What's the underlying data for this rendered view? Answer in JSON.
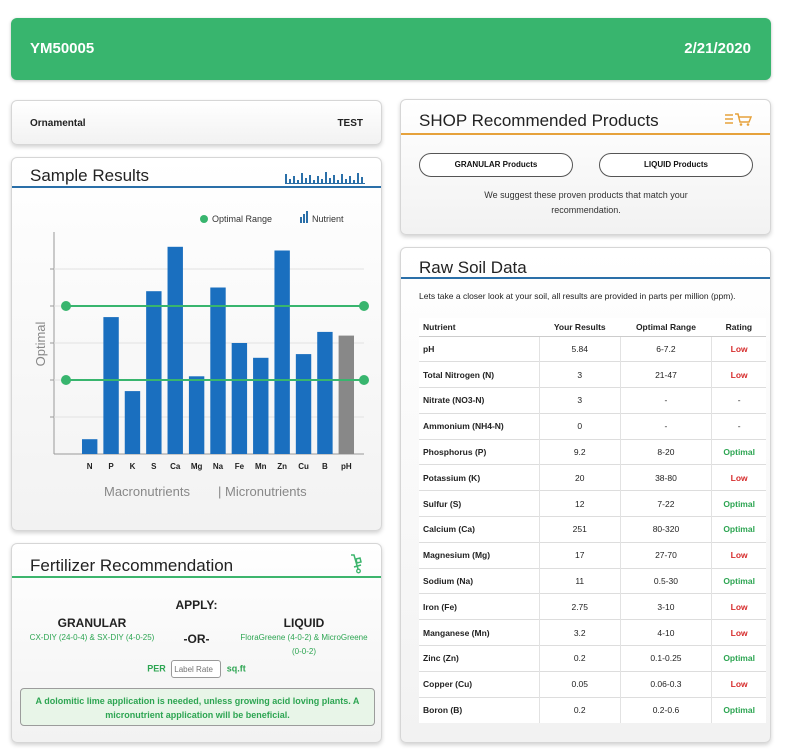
{
  "header": {
    "sample_id": "YM50005",
    "date": "2/21/2020"
  },
  "plant": {
    "name": "Ornamental",
    "tag": "TEST"
  },
  "sample_results": {
    "title": "Sample Results",
    "icon": "bar-chart-icon",
    "legend_optimal": "Optimal Range",
    "legend_nutrient": "Nutrient",
    "footer_macro": "Macronutrients",
    "footer_micro": "| Micronutrients"
  },
  "chart_data": {
    "type": "bar",
    "categories": [
      "N",
      "P",
      "K",
      "S",
      "Ca",
      "Mg",
      "Na",
      "Fe",
      "Mn",
      "Zn",
      "Cu",
      "B",
      "pH"
    ],
    "values": [
      0.4,
      3.7,
      1.7,
      4.4,
      5.6,
      2.1,
      4.5,
      3.0,
      2.6,
      5.5,
      2.7,
      3.3,
      3.2
    ],
    "bar_colors": [
      "#1a6fbf",
      "#1a6fbf",
      "#1a6fbf",
      "#1a6fbf",
      "#1a6fbf",
      "#1a6fbf",
      "#1a6fbf",
      "#1a6fbf",
      "#1a6fbf",
      "#1a6fbf",
      "#1a6fbf",
      "#1a6fbf",
      "#888888"
    ],
    "optimal_range": [
      2.0,
      4.0
    ],
    "ylim": [
      0,
      6
    ],
    "ylabel": "Optimal",
    "grid": true,
    "legend": "top-right"
  },
  "shop": {
    "title": "SHOP Recommended Products",
    "icon": "shopping-cart-icon",
    "granular_btn": "GRANULAR Products",
    "liquid_btn": "LIQUID Products",
    "message": "We suggest these proven products that match your recommendation."
  },
  "raw_soil": {
    "title": "Raw Soil Data",
    "intro": "Lets take a closer look at your soil, all results are provided in parts per million (ppm).",
    "headers": [
      "Nutrient",
      "Your Results",
      "Optimal Range",
      "Rating"
    ],
    "rows": [
      {
        "nutrient": "pH",
        "result": "5.84",
        "range": "6-7.2",
        "rating": "Low"
      },
      {
        "nutrient": "Total Nitrogen (N)",
        "result": "3",
        "range": "21-47",
        "rating": "Low"
      },
      {
        "nutrient": "Nitrate (NO3-N)",
        "result": "3",
        "range": "-",
        "rating": "-"
      },
      {
        "nutrient": "Ammonium (NH4-N)",
        "result": "0",
        "range": "-",
        "rating": "-"
      },
      {
        "nutrient": "Phosphorus (P)",
        "result": "9.2",
        "range": "8-20",
        "rating": "Optimal"
      },
      {
        "nutrient": "Potassium (K)",
        "result": "20",
        "range": "38-80",
        "rating": "Low"
      },
      {
        "nutrient": "Sulfur (S)",
        "result": "12",
        "range": "7-22",
        "rating": "Optimal"
      },
      {
        "nutrient": "Calcium (Ca)",
        "result": "251",
        "range": "80-320",
        "rating": "Optimal"
      },
      {
        "nutrient": "Magnesium (Mg)",
        "result": "17",
        "range": "27-70",
        "rating": "Low"
      },
      {
        "nutrient": "Sodium (Na)",
        "result": "11",
        "range": "0.5-30",
        "rating": "Optimal"
      },
      {
        "nutrient": "Iron (Fe)",
        "result": "2.75",
        "range": "3-10",
        "rating": "Low"
      },
      {
        "nutrient": "Manganese (Mn)",
        "result": "3.2",
        "range": "4-10",
        "rating": "Low"
      },
      {
        "nutrient": "Zinc (Zn)",
        "result": "0.2",
        "range": "0.1-0.25",
        "rating": "Optimal"
      },
      {
        "nutrient": "Copper (Cu)",
        "result": "0.05",
        "range": "0.06-0.3",
        "rating": "Low"
      },
      {
        "nutrient": "Boron (B)",
        "result": "0.2",
        "range": "0.2-0.6",
        "rating": "Optimal"
      }
    ]
  },
  "fertilizer": {
    "title": "Fertilizer Recommendation",
    "icon": "hand-truck-icon",
    "apply": "APPLY:",
    "or": "-OR-",
    "granular_title": "GRANULAR",
    "granular_products": "CX-DIY (24-0-4) & SX-DIY (4-0-25)",
    "liquid_title": "LIQUID",
    "liquid_products": "FloraGreene (4-0-2) & MicroGreene (0-0-2)",
    "per": "PER",
    "rate_placeholder": "Label Rate",
    "unit": "sq.ft",
    "note": "A dolomitic lime application is needed, unless growing acid loving plants. A micronutrient application will be beneficial."
  },
  "colors": {
    "brand_green": "#38b56e",
    "bar_blue": "#1a6fbf",
    "low_red": "#d62c2c",
    "optimal_green": "#2da552",
    "accent_orange": "#e6a23c"
  }
}
